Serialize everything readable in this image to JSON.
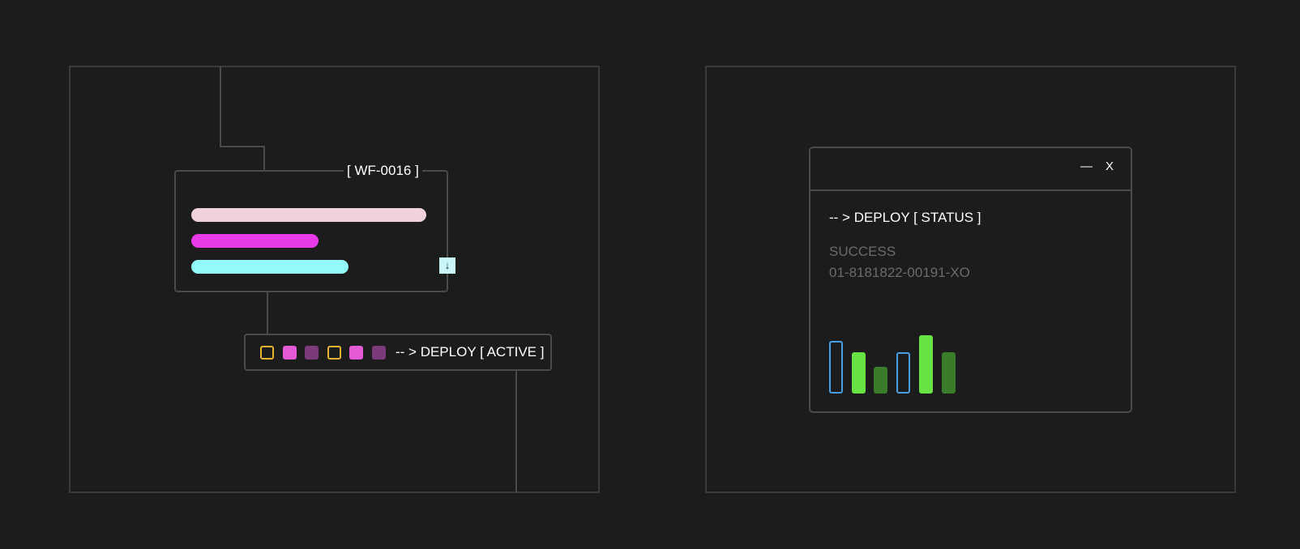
{
  "workflow": {
    "id_label": "[ WF-0016 ]",
    "progress_bars": [
      {
        "color": "#f0d2df",
        "fraction": 1.0
      },
      {
        "color": "#e93ae9",
        "fraction": 0.54
      },
      {
        "color": "#93fafa",
        "fraction": 0.67
      }
    ],
    "download_icon": "arrow-down-icon",
    "deploy_label": "-- > DEPLOY [ ACTIVE ]",
    "indicators": [
      {
        "style": "outline",
        "color": "#e5b32f"
      },
      {
        "style": "fill",
        "color": "#e45ad6"
      },
      {
        "style": "fill",
        "color": "#7b3a7a"
      },
      {
        "style": "outline",
        "color": "#e5b32f"
      },
      {
        "style": "fill",
        "color": "#e45ad6"
      },
      {
        "style": "fill",
        "color": "#7b3a7a"
      }
    ]
  },
  "status_window": {
    "minimize_label": "—",
    "close_label": "X",
    "title": "-- > DEPLOY [ STATUS ]",
    "status": "SUCCESS",
    "deploy_id": "01-8181822-00191-XO",
    "bars": [
      {
        "value": 65,
        "style": "outline",
        "color": "#4a9ee0"
      },
      {
        "value": 51,
        "style": "fill",
        "color": "#69e244"
      },
      {
        "value": 33,
        "style": "fill",
        "color": "#3a7c2a"
      },
      {
        "value": 51,
        "style": "outline",
        "color": "#4a9ee0"
      },
      {
        "value": 72,
        "style": "fill",
        "color": "#69e244"
      },
      {
        "value": 51,
        "style": "fill",
        "color": "#3a7c2a"
      }
    ]
  }
}
